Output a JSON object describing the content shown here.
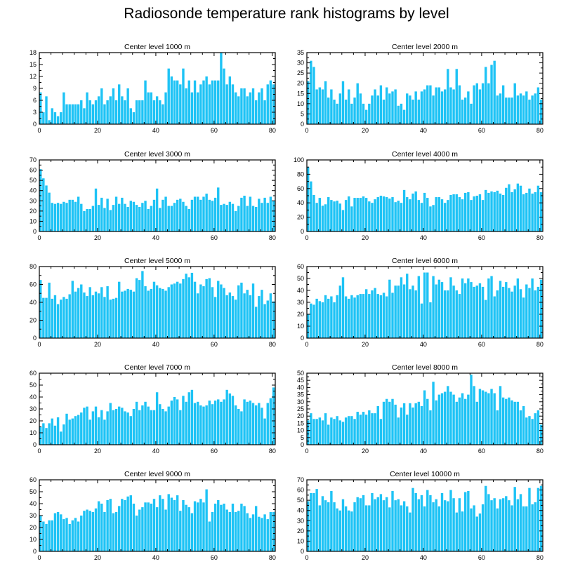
{
  "title": "Radiosonde temperature rank histograms by level",
  "bar_color": "#1ec3f5",
  "chart_data": [
    {
      "type": "bar",
      "title": "Center level 1000 m",
      "xlim": [
        0,
        81
      ],
      "xticks": [
        0,
        20,
        40,
        60,
        80
      ],
      "ylim": [
        0,
        18
      ],
      "yticks": [
        0,
        3,
        6,
        9,
        12,
        15,
        18
      ],
      "values": [
        8,
        3,
        7,
        1,
        4,
        3,
        2,
        3,
        8,
        5,
        5,
        5,
        5,
        5,
        6,
        4,
        8,
        6,
        5,
        6,
        7,
        9,
        5,
        6,
        7,
        9,
        6,
        10,
        7,
        6,
        9,
        4,
        3,
        6,
        6,
        6,
        11,
        8,
        8,
        6,
        7,
        6,
        5,
        8,
        14,
        12,
        11,
        11,
        10,
        14,
        9,
        11,
        8,
        11,
        8,
        10,
        11,
        12,
        10,
        11,
        11,
        11,
        18,
        14,
        10,
        12,
        10,
        8,
        7,
        9,
        9,
        7,
        8,
        9,
        6,
        8,
        9,
        6,
        10,
        11,
        10,
        6
      ]
    },
    {
      "type": "bar",
      "title": "Center level 2000 m",
      "xlim": [
        0,
        81
      ],
      "xticks": [
        0,
        20,
        40,
        60,
        80
      ],
      "ylim": [
        0,
        35
      ],
      "yticks": [
        0,
        5,
        10,
        15,
        20,
        25,
        30,
        35
      ],
      "values": [
        21,
        31,
        28,
        17,
        18,
        17,
        21,
        13,
        17,
        12,
        10,
        15,
        21,
        12,
        17,
        10,
        13,
        20,
        15,
        10,
        7,
        10,
        14,
        17,
        14,
        19,
        12,
        18,
        15,
        16,
        17,
        9,
        10,
        7,
        15,
        14,
        12,
        16,
        12,
        16,
        17,
        19,
        19,
        14,
        18,
        18,
        16,
        17,
        27,
        18,
        17,
        27,
        19,
        12,
        13,
        16,
        10,
        19,
        20,
        17,
        20,
        28,
        20,
        29,
        31,
        14,
        15,
        19,
        13,
        13,
        13,
        20,
        14,
        15,
        14,
        16,
        12,
        14,
        15,
        18,
        12,
        12
      ]
    },
    {
      "type": "bar",
      "title": "Center level 3000 m",
      "xlim": [
        0,
        81
      ],
      "xticks": [
        0,
        20,
        40,
        60,
        80
      ],
      "ylim": [
        0,
        70
      ],
      "yticks": [
        0,
        10,
        20,
        30,
        40,
        50,
        60,
        70
      ],
      "values": [
        61,
        52,
        45,
        38,
        28,
        27,
        28,
        27,
        29,
        28,
        31,
        31,
        29,
        34,
        27,
        20,
        22,
        22,
        25,
        42,
        26,
        33,
        23,
        32,
        21,
        26,
        34,
        27,
        33,
        27,
        24,
        30,
        29,
        26,
        24,
        28,
        30,
        22,
        25,
        31,
        42,
        23,
        31,
        34,
        25,
        25,
        28,
        31,
        32,
        29,
        25,
        22,
        31,
        34,
        34,
        31,
        34,
        37,
        31,
        30,
        33,
        43,
        26,
        27,
        26,
        29,
        27,
        20,
        25,
        33,
        35,
        25,
        34,
        25,
        24,
        32,
        28,
        33,
        28,
        34,
        30,
        43
      ]
    },
    {
      "type": "bar",
      "title": "Center level 4000 m",
      "xlim": [
        0,
        81
      ],
      "xticks": [
        0,
        20,
        40,
        60,
        80
      ],
      "ylim": [
        0,
        100
      ],
      "yticks": [
        0,
        20,
        40,
        60,
        80,
        100
      ],
      "values": [
        90,
        70,
        51,
        40,
        47,
        36,
        38,
        48,
        44,
        42,
        43,
        39,
        30,
        44,
        49,
        35,
        47,
        47,
        47,
        49,
        47,
        42,
        40,
        45,
        48,
        50,
        49,
        48,
        46,
        48,
        41,
        43,
        40,
        58,
        48,
        45,
        53,
        56,
        44,
        40,
        54,
        47,
        35,
        37,
        48,
        48,
        45,
        40,
        44,
        51,
        52,
        52,
        48,
        45,
        54,
        55,
        44,
        49,
        50,
        52,
        44,
        58,
        54,
        56,
        55,
        57,
        53,
        51,
        61,
        66,
        55,
        59,
        67,
        64,
        52,
        54,
        60,
        53,
        55,
        64,
        55,
        58
      ]
    },
    {
      "type": "bar",
      "title": "Center level 5000 m",
      "xlim": [
        0,
        81
      ],
      "xticks": [
        0,
        20,
        40,
        60,
        80
      ],
      "ylim": [
        0,
        80
      ],
      "yticks": [
        0,
        20,
        40,
        60,
        80
      ],
      "values": [
        65,
        45,
        45,
        62,
        44,
        48,
        38,
        43,
        46,
        44,
        49,
        64,
        52,
        56,
        60,
        51,
        47,
        57,
        48,
        52,
        50,
        57,
        46,
        58,
        43,
        44,
        45,
        63,
        52,
        53,
        55,
        54,
        52,
        67,
        65,
        75,
        58,
        53,
        55,
        63,
        59,
        56,
        55,
        53,
        57,
        60,
        61,
        63,
        61,
        66,
        72,
        68,
        73,
        63,
        50,
        60,
        58,
        66,
        67,
        57,
        46,
        64,
        60,
        56,
        48,
        51,
        47,
        43,
        59,
        62,
        50,
        54,
        48,
        61,
        35,
        47,
        54,
        38,
        42,
        50,
        41,
        38
      ]
    },
    {
      "type": "bar",
      "title": "Center level 6000 m",
      "xlim": [
        0,
        81
      ],
      "xticks": [
        0,
        20,
        40,
        60,
        80
      ],
      "ylim": [
        0,
        60
      ],
      "yticks": [
        0,
        10,
        20,
        30,
        40,
        50,
        60
      ],
      "values": [
        20,
        29,
        28,
        33,
        31,
        30,
        36,
        33,
        35,
        30,
        36,
        44,
        51,
        35,
        33,
        36,
        34,
        36,
        37,
        37,
        41,
        37,
        40,
        42,
        37,
        36,
        38,
        35,
        49,
        38,
        44,
        44,
        51,
        45,
        54,
        41,
        44,
        40,
        52,
        29,
        55,
        55,
        30,
        52,
        45,
        49,
        47,
        40,
        40,
        51,
        44,
        40,
        37,
        50,
        46,
        50,
        47,
        43,
        44,
        46,
        43,
        32,
        50,
        52,
        35,
        40,
        48,
        43,
        47,
        42,
        39,
        44,
        50,
        41,
        34,
        45,
        42,
        50,
        40,
        43,
        49,
        47
      ]
    },
    {
      "type": "bar",
      "title": "Center level 7000 m",
      "xlim": [
        0,
        81
      ],
      "xticks": [
        0,
        20,
        40,
        60,
        80
      ],
      "ylim": [
        0,
        60
      ],
      "yticks": [
        0,
        10,
        20,
        30,
        40,
        50,
        60
      ],
      "values": [
        15,
        18,
        14,
        18,
        22,
        16,
        23,
        11,
        17,
        26,
        21,
        22,
        24,
        25,
        27,
        31,
        32,
        21,
        28,
        32,
        23,
        29,
        21,
        28,
        35,
        29,
        30,
        32,
        31,
        28,
        27,
        24,
        30,
        36,
        29,
        33,
        36,
        32,
        29,
        29,
        44,
        34,
        30,
        28,
        32,
        37,
        40,
        38,
        29,
        41,
        36,
        44,
        46,
        35,
        36,
        33,
        32,
        33,
        37,
        34,
        37,
        38,
        36,
        38,
        46,
        43,
        41,
        33,
        30,
        28,
        38,
        36,
        37,
        35,
        33,
        35,
        31,
        22,
        35,
        39,
        48,
        47
      ]
    },
    {
      "type": "bar",
      "title": "Center level 8000 m",
      "xlim": [
        0,
        81
      ],
      "xticks": [
        0,
        20,
        40,
        60,
        80
      ],
      "ylim": [
        0,
        50
      ],
      "yticks": [
        0,
        5,
        10,
        15,
        20,
        25,
        30,
        35,
        40,
        45,
        50
      ],
      "values": [
        17,
        22,
        18,
        18,
        19,
        17,
        22,
        14,
        19,
        18,
        20,
        17,
        16,
        19,
        20,
        20,
        18,
        23,
        21,
        23,
        21,
        24,
        22,
        22,
        27,
        18,
        30,
        32,
        30,
        32,
        28,
        19,
        26,
        29,
        21,
        29,
        26,
        29,
        30,
        27,
        38,
        32,
        24,
        44,
        31,
        35,
        36,
        37,
        41,
        37,
        35,
        30,
        33,
        36,
        32,
        35,
        49,
        41,
        30,
        39,
        38,
        37,
        36,
        39,
        36,
        24,
        41,
        33,
        32,
        33,
        31,
        30,
        30,
        24,
        27,
        19,
        20,
        18,
        22,
        24,
        14,
        17
      ]
    },
    {
      "type": "bar",
      "title": "Center level 9000 m",
      "xlim": [
        0,
        81
      ],
      "xticks": [
        0,
        20,
        40,
        60,
        80
      ],
      "ylim": [
        0,
        60
      ],
      "yticks": [
        0,
        10,
        20,
        30,
        40,
        50,
        60
      ],
      "values": [
        30,
        25,
        23,
        26,
        26,
        32,
        33,
        31,
        27,
        28,
        23,
        26,
        28,
        25,
        30,
        34,
        35,
        34,
        33,
        36,
        42,
        40,
        33,
        43,
        44,
        32,
        33,
        38,
        44,
        43,
        46,
        47,
        40,
        30,
        35,
        37,
        41,
        41,
        40,
        44,
        37,
        47,
        44,
        35,
        48,
        45,
        43,
        47,
        34,
        43,
        39,
        37,
        32,
        42,
        41,
        44,
        41,
        52,
        25,
        33,
        40,
        43,
        39,
        40,
        35,
        33,
        40,
        33,
        34,
        40,
        38,
        32,
        28,
        31,
        38,
        29,
        28,
        31,
        27,
        33,
        33,
        31
      ]
    },
    {
      "type": "bar",
      "title": "Center level 10000 m",
      "xlim": [
        0,
        81
      ],
      "xticks": [
        0,
        20,
        40,
        60,
        80
      ],
      "ylim": [
        0,
        70
      ],
      "yticks": [
        0,
        10,
        20,
        30,
        40,
        50,
        60,
        70
      ],
      "values": [
        49,
        57,
        57,
        61,
        45,
        54,
        50,
        48,
        59,
        48,
        42,
        40,
        51,
        44,
        40,
        39,
        48,
        53,
        52,
        55,
        45,
        45,
        57,
        51,
        53,
        56,
        50,
        53,
        43,
        59,
        50,
        51,
        45,
        49,
        44,
        38,
        62,
        57,
        51,
        55,
        44,
        60,
        55,
        48,
        51,
        44,
        57,
        50,
        49,
        60,
        52,
        38,
        52,
        39,
        58,
        59,
        42,
        45,
        34,
        37,
        46,
        64,
        56,
        50,
        52,
        42,
        51,
        52,
        54,
        50,
        45,
        63,
        51,
        56,
        44,
        44,
        62,
        46,
        48,
        62,
        64,
        70
      ]
    }
  ]
}
